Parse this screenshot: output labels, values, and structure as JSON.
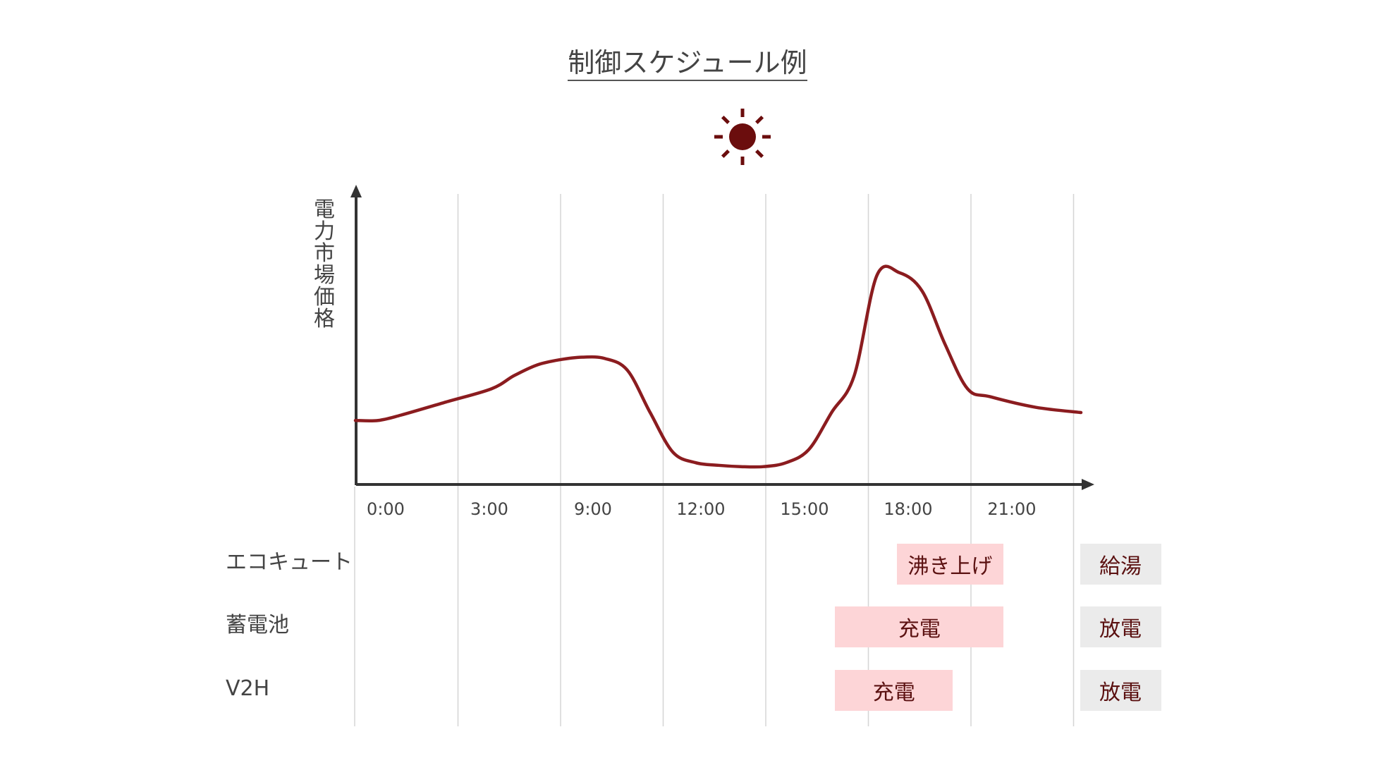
{
  "title": "制御スケジュール例",
  "sun_icon": "sun-icon",
  "colors": {
    "curve": "#8b1c1f",
    "axis": "#333333",
    "grid": "#d5d5d5",
    "charge_block": "#fdd5d7",
    "discharge_block": "#ebebeb",
    "sun": "#6b0d0d"
  },
  "chart_data": {
    "type": "line",
    "title": "制御スケジュール例",
    "ylabel": "電力市場価格",
    "xlabel": "",
    "x_ticks": [
      "0:00",
      "3:00",
      "9:00",
      "12:00",
      "15:00",
      "18:00",
      "21:00"
    ],
    "y_unit": "relative price (0-100)",
    "ylim": [
      0,
      100
    ],
    "points": [
      [
        0.0,
        24
      ],
      [
        0.5,
        24
      ],
      [
        1.0,
        26
      ],
      [
        2.0,
        31
      ],
      [
        3.0,
        36
      ],
      [
        3.5,
        41
      ],
      [
        4.0,
        45
      ],
      [
        4.5,
        47
      ],
      [
        5.0,
        48
      ],
      [
        5.5,
        47.5
      ],
      [
        6.0,
        43
      ],
      [
        6.5,
        27
      ],
      [
        7.0,
        12
      ],
      [
        7.5,
        8
      ],
      [
        8.0,
        7
      ],
      [
        8.5,
        6.5
      ],
      [
        9.0,
        6.5
      ],
      [
        9.5,
        8
      ],
      [
        10.0,
        13
      ],
      [
        10.5,
        27
      ],
      [
        11.0,
        41
      ],
      [
        11.5,
        79
      ],
      [
        12.0,
        80
      ],
      [
        12.5,
        73
      ],
      [
        13.0,
        53
      ],
      [
        13.5,
        36
      ],
      [
        14.0,
        33
      ],
      [
        15.0,
        29
      ],
      [
        16.0,
        27
      ]
    ],
    "x_range": [
      0,
      16
    ],
    "grid": "vertical"
  },
  "rows": [
    {
      "label": "エコキュート",
      "blocks": [
        {
          "text": "沸き上げ",
          "kind": "charge",
          "start": 10.5,
          "end": 12.6
        },
        {
          "text": "給湯",
          "kind": "discharge",
          "start": 14.1,
          "end": 15.7
        }
      ]
    },
    {
      "label": "蓄電池",
      "blocks": [
        {
          "text": "充電",
          "kind": "charge",
          "start": 9.3,
          "end": 12.6
        },
        {
          "text": "放電",
          "kind": "discharge",
          "start": 14.1,
          "end": 15.7
        }
      ]
    },
    {
      "label": "V2H",
      "blocks": [
        {
          "text": "充電",
          "kind": "charge",
          "start": 9.3,
          "end": 11.6
        },
        {
          "text": "放電",
          "kind": "discharge",
          "start": 14.1,
          "end": 15.7
        }
      ]
    }
  ]
}
